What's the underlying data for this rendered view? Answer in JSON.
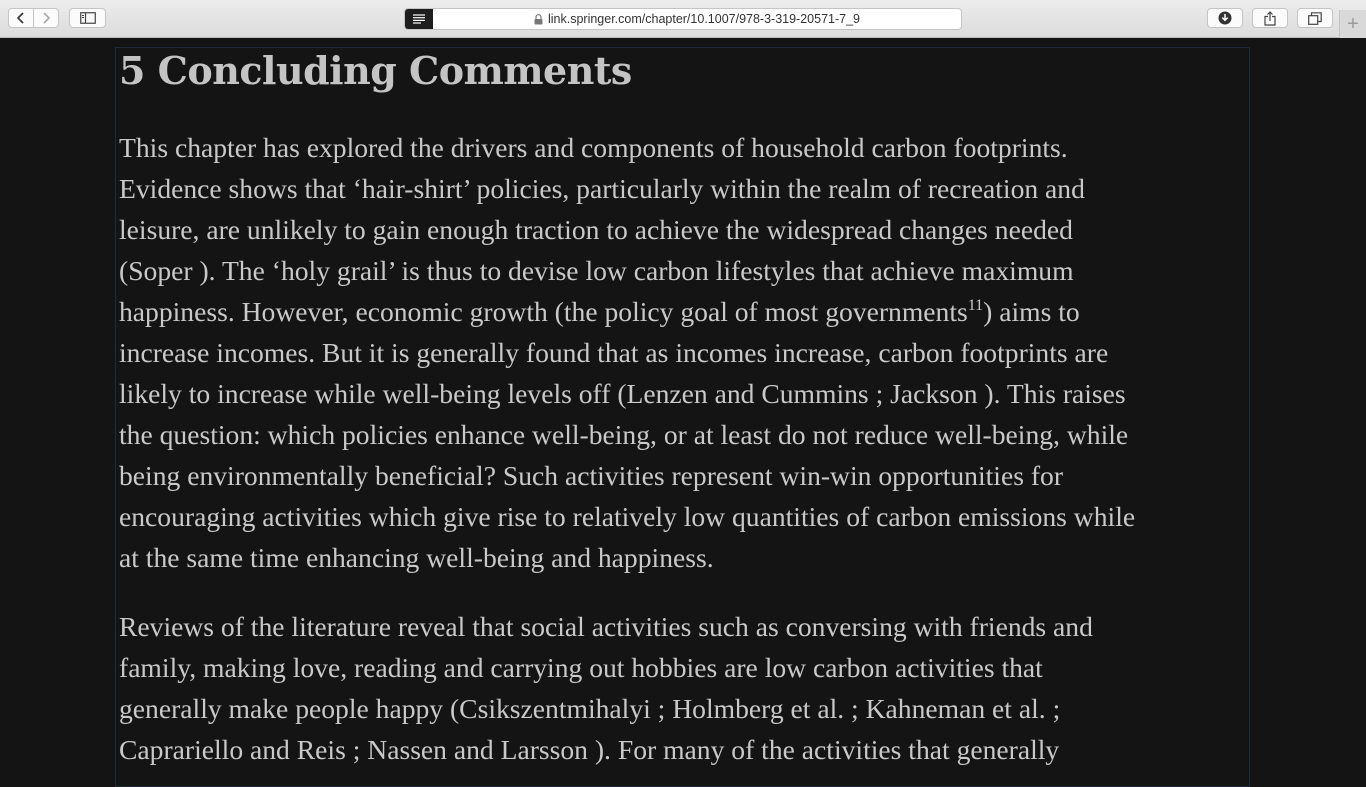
{
  "browser": {
    "url": "link.springer.com/chapter/10.1007/978-3-319-20571-7_9",
    "new_tab_label": "+"
  },
  "article": {
    "heading": "5 Concluding Comments",
    "paragraph1": {
      "lines": [
        "This chapter has explored the drivers and components of household carbon footprints.",
        "Evidence shows that ‘hair-shirt’ policies, particularly within the realm of recreation and",
        "leisure, are unlikely to gain enough traction to achieve the widespread changes needed",
        "(Soper ). The ‘holy grail’ is thus to devise low carbon lifestyles that achieve maximum"
      ],
      "line5_before_note": "happiness. However, economic growth (the policy goal of most governments",
      "footnote": "11",
      "line5_after_note": ") aims to",
      "lines_rest": [
        "increase incomes. But it is generally found that as incomes increase, carbon footprints are",
        "likely to increase while well-being levels off (Lenzen and Cummins ; Jackson ). This raises",
        "the question: which policies enhance well-being, or at least do not reduce well-being, while",
        "being environmentally beneficial? Such activities represent win-win opportunities for",
        "encouraging activities which give rise to relatively low quantities of carbon emissions while",
        "at the same time enhancing well-being and happiness."
      ]
    },
    "paragraph2": {
      "lines": [
        "Reviews of the literature reveal that social activities such as conversing with friends and",
        "family, making love, reading and carrying out hobbies are low carbon activities that",
        "generally make people happy (Csikszentmihalyi ; Holmberg et al. ; Kahneman et al. ;",
        "Caprariello and Reis ; Nassen and Larsson ). For many of the activities that generally"
      ]
    }
  }
}
